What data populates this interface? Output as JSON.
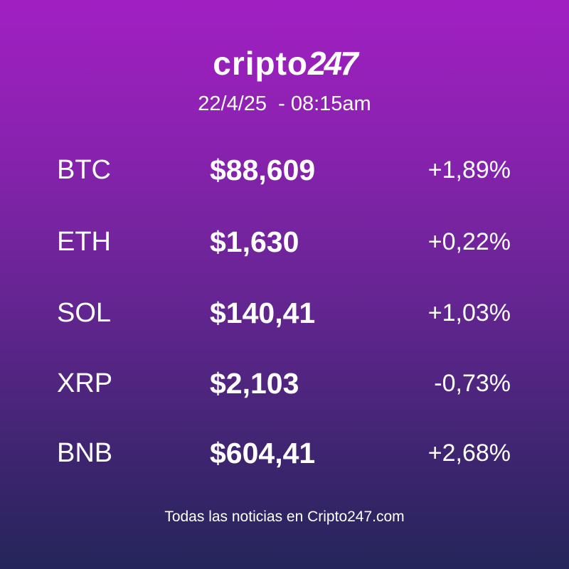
{
  "header": {
    "logo": {
      "wordmark": "cripto",
      "mark": "247"
    },
    "datetime": "22/4/25  - 08:15am"
  },
  "table": {
    "rows": [
      [
        "BTC",
        "$88,609",
        "+1,89%"
      ],
      [
        "ETH",
        "$1,630",
        "+0,22%"
      ],
      [
        "SOL",
        "$140,41",
        "+1,03%"
      ],
      [
        "XRP",
        "$2,103",
        "-0,73%"
      ],
      [
        "BNB",
        "$604,41",
        "+2,68%"
      ]
    ]
  },
  "footer": {
    "text": "Todas las noticias en Cripto247.com"
  }
}
